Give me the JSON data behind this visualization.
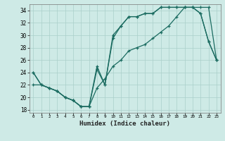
{
  "xlabel": "Humidex (Indice chaleur)",
  "bg_color": "#ceeae6",
  "grid_color": "#aacfca",
  "line_color": "#1a6b60",
  "xlim": [
    -0.5,
    23.5
  ],
  "ylim": [
    17.5,
    35.0
  ],
  "xticks": [
    0,
    1,
    2,
    3,
    4,
    5,
    6,
    7,
    8,
    9,
    10,
    11,
    12,
    13,
    14,
    15,
    16,
    17,
    18,
    19,
    20,
    21,
    22,
    23
  ],
  "yticks": [
    18,
    20,
    22,
    24,
    26,
    28,
    30,
    32,
    34
  ],
  "line_upper_x": [
    0,
    1,
    2,
    3,
    4,
    5,
    6,
    7,
    8,
    9,
    10,
    11,
    12,
    13,
    14,
    15,
    16,
    17,
    18,
    19,
    20,
    21,
    22,
    23
  ],
  "line_upper_y": [
    24,
    22,
    21.5,
    21,
    20,
    19.5,
    18.5,
    18.5,
    25,
    22,
    30,
    31.5,
    33,
    33,
    33.5,
    33.5,
    34.5,
    34.5,
    34.5,
    34.5,
    34.5,
    33.5,
    29,
    26
  ],
  "line_mid_x": [
    0,
    1,
    2,
    3,
    4,
    5,
    6,
    7,
    8,
    9,
    10,
    11,
    12,
    13,
    14,
    15,
    16,
    17,
    18,
    19,
    20,
    21,
    22,
    23
  ],
  "line_mid_y": [
    24,
    22,
    21.5,
    21,
    20,
    19.5,
    18.5,
    18.5,
    24.5,
    22,
    29.5,
    31.5,
    33,
    33,
    33.5,
    33.5,
    34.5,
    34.5,
    34.5,
    34.5,
    34.5,
    33.5,
    29,
    26
  ],
  "line_lower_x": [
    0,
    1,
    2,
    3,
    4,
    5,
    6,
    7,
    8,
    9,
    10,
    11,
    12,
    13,
    14,
    15,
    16,
    17,
    18,
    19,
    20,
    21,
    22,
    23
  ],
  "line_lower_y": [
    22,
    22,
    21.5,
    21,
    20,
    19.5,
    18.5,
    18.5,
    21.5,
    23,
    25,
    26,
    27.5,
    28,
    28.5,
    29.5,
    30.5,
    31.5,
    33,
    34.5,
    34.5,
    34.5,
    34.5,
    26
  ]
}
